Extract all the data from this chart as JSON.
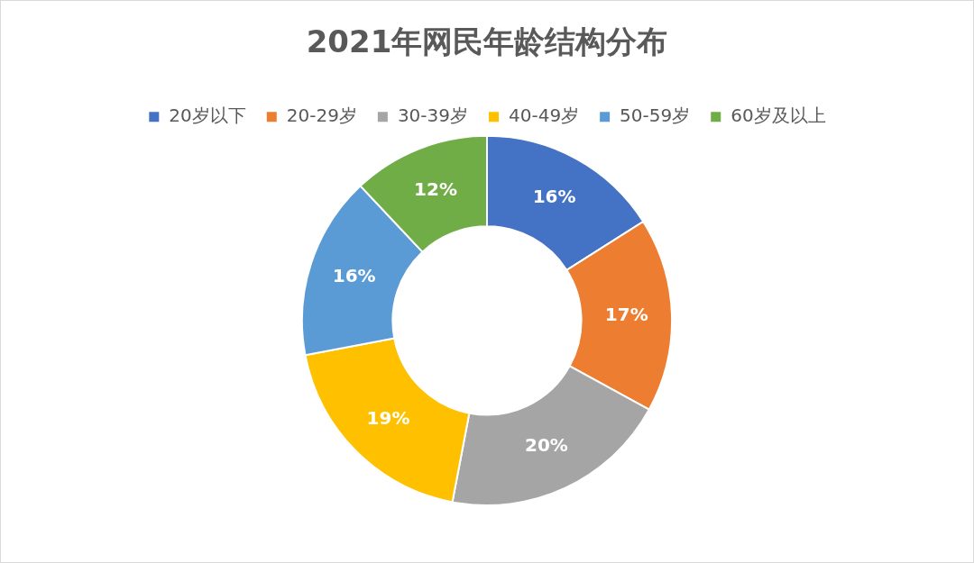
{
  "chart_data": {
    "type": "donut",
    "title": "2021年网民年龄结构分布",
    "categories": [
      "20岁以下",
      "20-29岁",
      "30-39岁",
      "40-49岁",
      "50-59岁",
      "60岁及以上"
    ],
    "values": [
      16,
      17,
      20,
      19,
      16,
      12
    ],
    "colors": [
      "#4472c4",
      "#ed7d31",
      "#a5a5a5",
      "#ffc000",
      "#5b9bd5",
      "#70ad47"
    ],
    "value_labels": [
      "16%",
      "17%",
      "20%",
      "19%",
      "16%",
      "12%"
    ],
    "legend": "top"
  }
}
